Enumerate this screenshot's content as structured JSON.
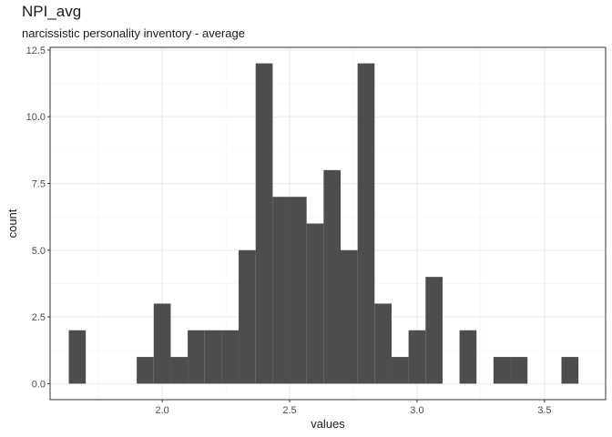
{
  "chart_data": {
    "type": "bar",
    "title": "NPI_avg",
    "subtitle": "narcissistic personality inventory - average",
    "xlabel": "values",
    "ylabel": "count",
    "xlim": [
      1.56,
      3.74
    ],
    "ylim": [
      -0.6,
      12.6
    ],
    "x_ticks": [
      2.0,
      2.5,
      3.0,
      3.5
    ],
    "x_tick_labels": [
      "2.0",
      "2.5",
      "3.0",
      "3.5"
    ],
    "y_ticks": [
      0,
      2.5,
      5,
      7.5,
      10,
      12.5
    ],
    "y_tick_labels": [
      "0.0",
      "2.5",
      "5.0",
      "7.5",
      "10.0",
      "12.5"
    ],
    "bin_width": 0.0667,
    "bin_centers": [
      1.6667,
      1.7333,
      1.8,
      1.8667,
      1.9333,
      2.0,
      2.0667,
      2.1333,
      2.2,
      2.2667,
      2.3333,
      2.4,
      2.4667,
      2.5333,
      2.6,
      2.6667,
      2.7333,
      2.8,
      2.8667,
      2.9333,
      3.0,
      3.0667,
      3.1333,
      3.2,
      3.2667,
      3.3333,
      3.4,
      3.4667,
      3.5333,
      3.6
    ],
    "values": [
      2,
      0,
      0,
      0,
      1,
      3,
      1,
      2,
      2,
      2,
      5,
      12,
      7,
      7,
      6,
      8,
      5,
      12,
      3,
      1,
      2,
      4,
      0,
      2,
      0,
      1,
      1,
      0,
      0,
      1
    ],
    "grid": true,
    "bar_color": "#4d4d4d",
    "panel_border_color": "#333333",
    "grid_major_color": "#ebebeb",
    "grid_minor_color": "#f5f5f5"
  }
}
